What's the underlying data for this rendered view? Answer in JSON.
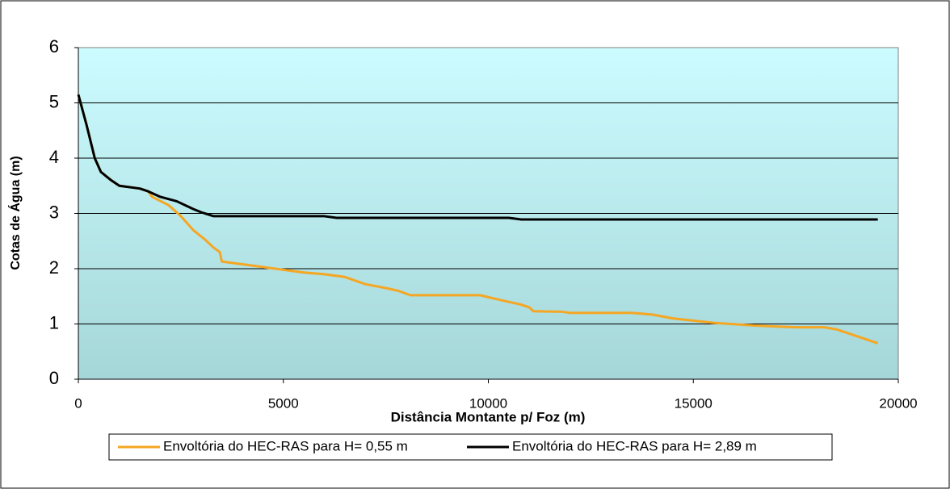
{
  "chart_data": {
    "type": "line",
    "xlabel": "Distância Montante p/ Foz (m)",
    "ylabel": "Cotas de Água (m)",
    "xlim": [
      0,
      20000
    ],
    "xticks": [
      0,
      5000,
      10000,
      15000,
      20000
    ],
    "ylim": [
      0,
      6
    ],
    "yticks": [
      0,
      1,
      2,
      3,
      4,
      5,
      6
    ],
    "grid": true,
    "legend": "bottom",
    "series": [
      {
        "name": "Envoltória do HEC-RAS para H= 0,55 m",
        "color": "#f5a623",
        "x": [
          0,
          200,
          400,
          550,
          800,
          1000,
          1500,
          1700,
          1800,
          2200,
          2500,
          2800,
          3100,
          3300,
          3450,
          3500,
          4000,
          5000,
          5500,
          6000,
          6500,
          7000,
          7500,
          7800,
          8100,
          9800,
          10200,
          10800,
          11000,
          11100,
          11800,
          12000,
          13500,
          14000,
          14500,
          15500,
          16500,
          17500,
          18200,
          18500,
          19500
        ],
        "values": [
          5.15,
          4.6,
          4.0,
          3.75,
          3.6,
          3.5,
          3.45,
          3.4,
          3.3,
          3.15,
          2.95,
          2.7,
          2.52,
          2.38,
          2.3,
          2.13,
          2.08,
          1.98,
          1.93,
          1.9,
          1.85,
          1.72,
          1.65,
          1.6,
          1.52,
          1.52,
          1.45,
          1.35,
          1.3,
          1.23,
          1.22,
          1.2,
          1.2,
          1.17,
          1.1,
          1.02,
          0.97,
          0.94,
          0.94,
          0.9,
          0.65
        ]
      },
      {
        "name": "Envoltória do HEC-RAS para H= 2,89 m",
        "color": "#000000",
        "x": [
          0,
          200,
          400,
          550,
          800,
          1000,
          1500,
          1700,
          2000,
          2400,
          2800,
          3000,
          3300,
          6000,
          6300,
          10500,
          10800,
          19500
        ],
        "values": [
          5.15,
          4.6,
          4.0,
          3.75,
          3.6,
          3.5,
          3.45,
          3.4,
          3.3,
          3.22,
          3.08,
          3.02,
          2.95,
          2.95,
          2.92,
          2.92,
          2.89,
          2.89
        ]
      }
    ]
  }
}
